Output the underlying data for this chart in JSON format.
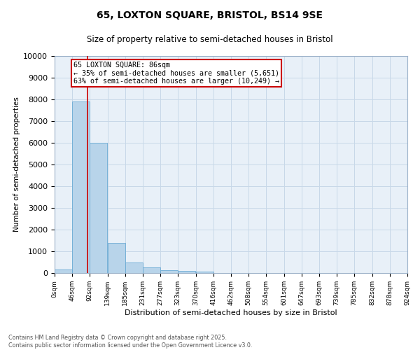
{
  "title": "65, LOXTON SQUARE, BRISTOL, BS14 9SE",
  "subtitle": "Size of property relative to semi-detached houses in Bristol",
  "xlabel": "Distribution of semi-detached houses by size in Bristol",
  "ylabel": "Number of semi-detached properties",
  "bin_labels": [
    "0sqm",
    "46sqm",
    "92sqm",
    "139sqm",
    "185sqm",
    "231sqm",
    "277sqm",
    "323sqm",
    "370sqm",
    "416sqm",
    "462sqm",
    "508sqm",
    "554sqm",
    "601sqm",
    "647sqm",
    "693sqm",
    "739sqm",
    "785sqm",
    "832sqm",
    "878sqm",
    "924sqm"
  ],
  "bin_edges": [
    0,
    46,
    92,
    139,
    185,
    231,
    277,
    323,
    370,
    416,
    462,
    508,
    554,
    601,
    647,
    693,
    739,
    785,
    832,
    878,
    924
  ],
  "bar_heights": [
    150,
    7900,
    6000,
    1400,
    500,
    250,
    130,
    100,
    50,
    10,
    5,
    3,
    2,
    1,
    1,
    1,
    0,
    0,
    0,
    0
  ],
  "bar_color": "#b8d4ea",
  "bar_edge_color": "#6aaad4",
  "property_size": 86,
  "property_name": "65 LOXTON SQUARE: 86sqm",
  "pct_smaller": 35,
  "pct_larger": 63,
  "n_smaller": 5651,
  "n_larger": 10249,
  "red_line_color": "#cc0000",
  "annotation_box_color": "#cc0000",
  "ylim": [
    0,
    10000
  ],
  "yticks": [
    0,
    1000,
    2000,
    3000,
    4000,
    5000,
    6000,
    7000,
    8000,
    9000,
    10000
  ],
  "grid_color": "#c8d8e8",
  "background_color": "#e8f0f8",
  "footer_line1": "Contains HM Land Registry data © Crown copyright and database right 2025.",
  "footer_line2": "Contains public sector information licensed under the Open Government Licence v3.0."
}
